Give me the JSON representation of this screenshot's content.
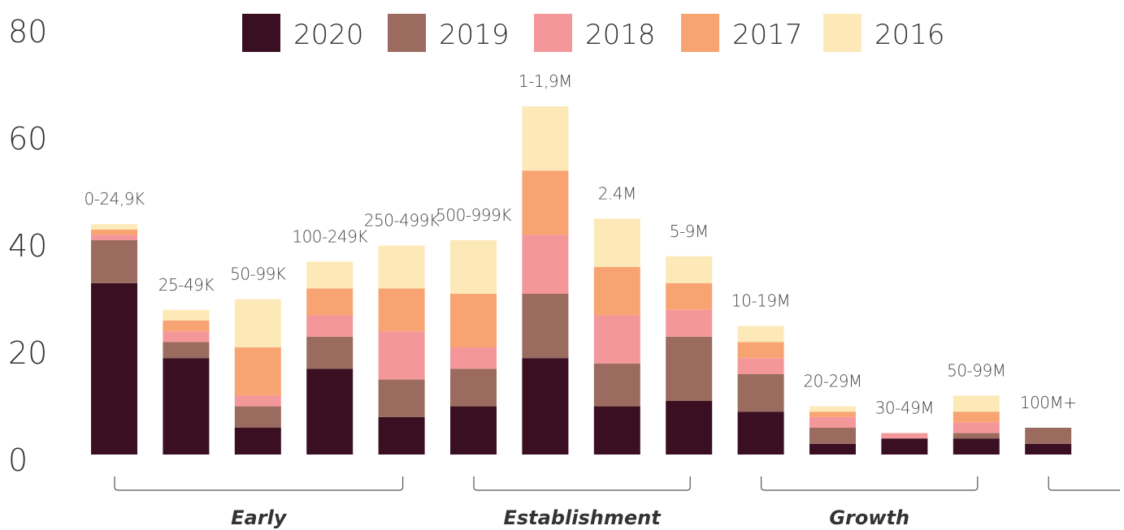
{
  "chart_data": {
    "type": "bar",
    "stacked": true,
    "categories": [
      "0-24,9K",
      "25-49K",
      "50-99K",
      "100-249K",
      "250-499K",
      "500-999K",
      "1-1,9M",
      "2.4M",
      "5-9M",
      "10-19M",
      "20-29M",
      "30-49M",
      "50-99M",
      "100M+"
    ],
    "ylim": [
      0,
      80
    ],
    "yticks": [
      "0",
      "20",
      "40",
      "60",
      "80"
    ],
    "grid": false,
    "legend_position": "top",
    "series": [
      {
        "name": "2020",
        "color": "#3a0f22",
        "values": [
          32,
          18,
          5,
          16,
          7,
          9,
          18,
          9,
          10,
          8,
          2,
          3,
          3,
          2
        ]
      },
      {
        "name": "2019",
        "color": "#9a6b5e",
        "values": [
          8,
          3,
          4,
          6,
          7,
          7,
          12,
          8,
          12,
          7,
          3,
          0,
          1,
          3
        ]
      },
      {
        "name": "2018",
        "color": "#f4979a",
        "values": [
          1,
          2,
          2,
          4,
          9,
          4,
          11,
          9,
          5,
          3,
          2,
          1,
          2,
          0
        ]
      },
      {
        "name": "2017",
        "color": "#f8a472",
        "values": [
          1,
          2,
          9,
          5,
          8,
          10,
          12,
          9,
          5,
          3,
          1,
          0,
          2,
          0
        ]
      },
      {
        "name": "2016",
        "color": "#fde9b8",
        "values": [
          1,
          2,
          9,
          5,
          8,
          10,
          12,
          9,
          5,
          3,
          1,
          0,
          3,
          0
        ]
      }
    ],
    "groups": [
      {
        "label": "Early",
        "from": 0,
        "to": 4
      },
      {
        "label": "Establishment",
        "from": 5,
        "to": 8
      },
      {
        "label": "Growth",
        "from": 9,
        "to": 12
      },
      {
        "label": "",
        "from": 13,
        "to": 13
      }
    ]
  }
}
